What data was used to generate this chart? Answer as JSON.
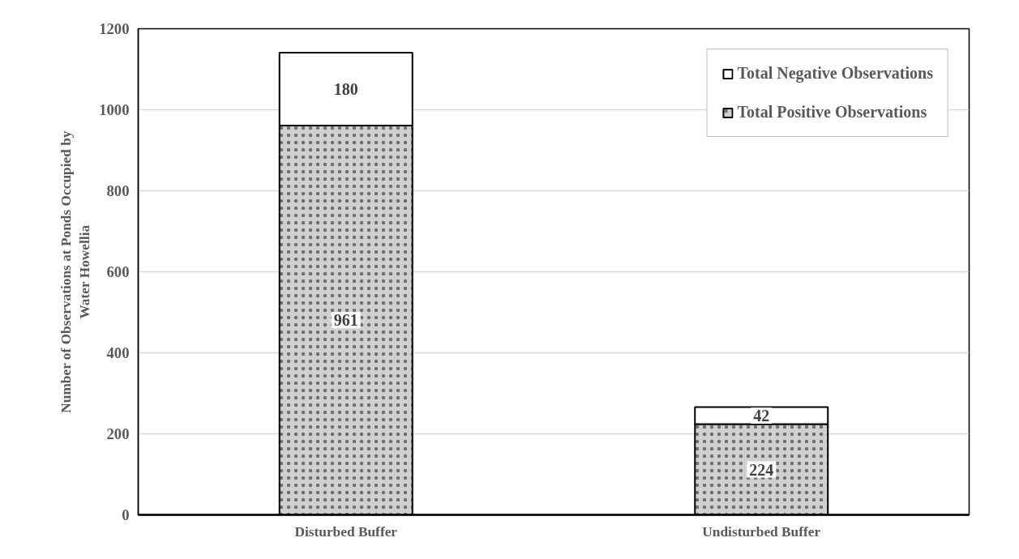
{
  "chart_data": {
    "type": "bar",
    "stacked": true,
    "ylabel": "Number of Observations at Ponds Occupied by Water Howellia",
    "categories": [
      "Disturbed Buffer",
      "Undisturbed Buffer"
    ],
    "series": [
      {
        "name": "Total Positive Observations",
        "color": "#d0d0d0",
        "values": [
          961,
          224
        ]
      },
      {
        "name": "Total Negative Observations",
        "color": "#ffffff",
        "values": [
          180,
          42
        ]
      }
    ],
    "ylim": [
      0,
      1200
    ],
    "yticks": [
      0,
      200,
      400,
      600,
      800,
      1000,
      1200
    ],
    "grid": "y",
    "legend": "top right",
    "data_labels": true
  }
}
